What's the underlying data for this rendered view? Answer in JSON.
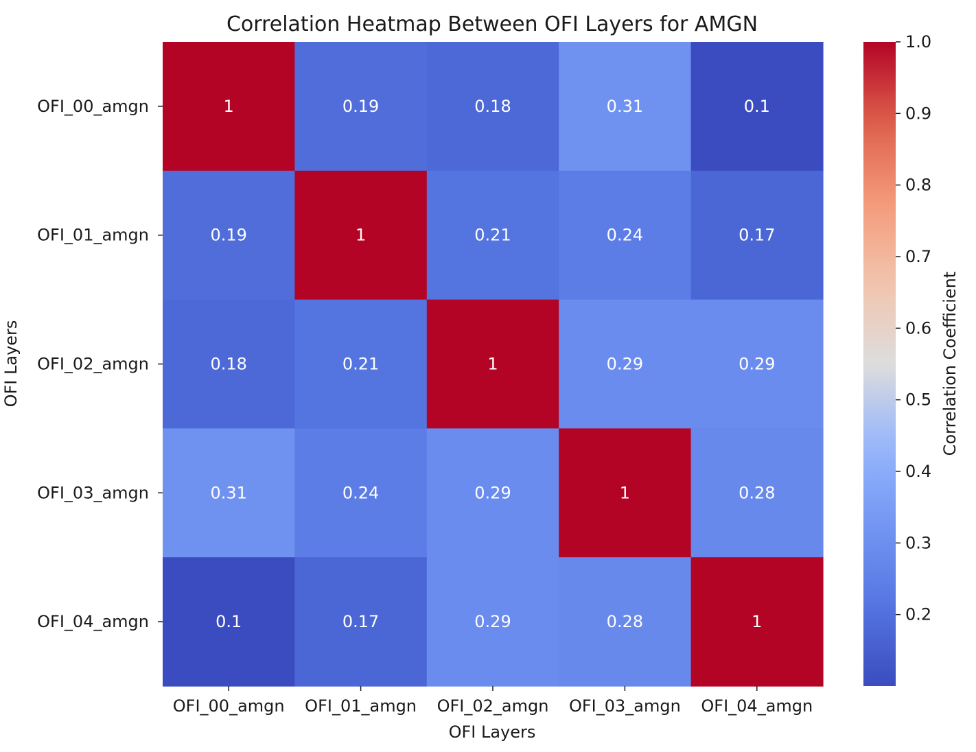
{
  "chart_data": {
    "type": "heatmap",
    "title": "Correlation Heatmap Between OFI Layers for AMGN",
    "xlabel": "OFI Layers",
    "ylabel": "OFI Layers",
    "x_categories": [
      "OFI_00_amgn",
      "OFI_01_amgn",
      "OFI_02_amgn",
      "OFI_03_amgn",
      "OFI_04_amgn"
    ],
    "y_categories": [
      "OFI_00_amgn",
      "OFI_01_amgn",
      "OFI_02_amgn",
      "OFI_03_amgn",
      "OFI_04_amgn"
    ],
    "values": [
      [
        1,
        0.19,
        0.18,
        0.31,
        0.1
      ],
      [
        0.19,
        1,
        0.21,
        0.24,
        0.17
      ],
      [
        0.18,
        0.21,
        1,
        0.29,
        0.29
      ],
      [
        0.31,
        0.24,
        0.29,
        1,
        0.28
      ],
      [
        0.1,
        0.17,
        0.29,
        0.28,
        1
      ]
    ],
    "annotations": [
      [
        "1",
        "0.19",
        "0.18",
        "0.31",
        "0.1"
      ],
      [
        "0.19",
        "1",
        "0.21",
        "0.24",
        "0.17"
      ],
      [
        "0.18",
        "0.21",
        "1",
        "0.29",
        "0.29"
      ],
      [
        "0.31",
        "0.24",
        "0.29",
        "1",
        "0.28"
      ],
      [
        "0.1",
        "0.17",
        "0.29",
        "0.28",
        "1"
      ]
    ],
    "colormap": "coolwarm",
    "vmin": 0.1,
    "vmax": 1.0,
    "colorbar": {
      "label": "Correlation Coefficient",
      "ticks": [
        0.2,
        0.3,
        0.4,
        0.5,
        0.6,
        0.7,
        0.8,
        0.9,
        1.0
      ],
      "tick_labels": [
        "0.2",
        "0.3",
        "0.4",
        "0.5",
        "0.6",
        "0.7",
        "0.8",
        "0.9",
        "1.0"
      ],
      "placement": "right"
    },
    "colors": {
      "low": "#3b4cc0",
      "mid": "#dddddd",
      "high": "#b40426"
    }
  }
}
